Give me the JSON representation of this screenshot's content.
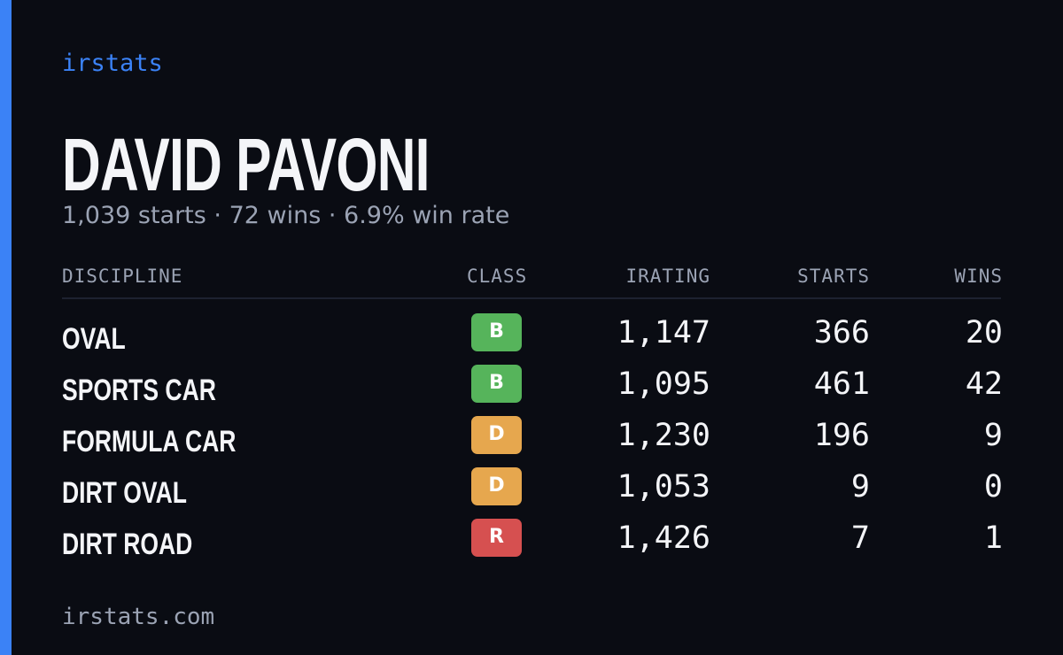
{
  "brand": "irstats",
  "driver": {
    "name": "DAVID PAVONI",
    "summary": "1,039 starts · 72 wins · 6.9% win rate"
  },
  "table": {
    "headers": [
      "DISCIPLINE",
      "CLASS",
      "IRATING",
      "STARTS",
      "WINS"
    ],
    "rows": [
      {
        "discipline": "OVAL",
        "class": "B",
        "class_color": "#56b45b",
        "irating": "1,147",
        "starts": "366",
        "wins": "20"
      },
      {
        "discipline": "SPORTS CAR",
        "class": "B",
        "class_color": "#56b45b",
        "irating": "1,095",
        "starts": "461",
        "wins": "42"
      },
      {
        "discipline": "FORMULA CAR",
        "class": "D",
        "class_color": "#e6a74e",
        "irating": "1,230",
        "starts": "196",
        "wins": "9"
      },
      {
        "discipline": "DIRT OVAL",
        "class": "D",
        "class_color": "#e6a74e",
        "irating": "1,053",
        "starts": "9",
        "wins": "0"
      },
      {
        "discipline": "DIRT ROAD",
        "class": "R",
        "class_color": "#d65050",
        "irating": "1,426",
        "starts": "7",
        "wins": "1"
      }
    ]
  },
  "footer": "irstats.com"
}
